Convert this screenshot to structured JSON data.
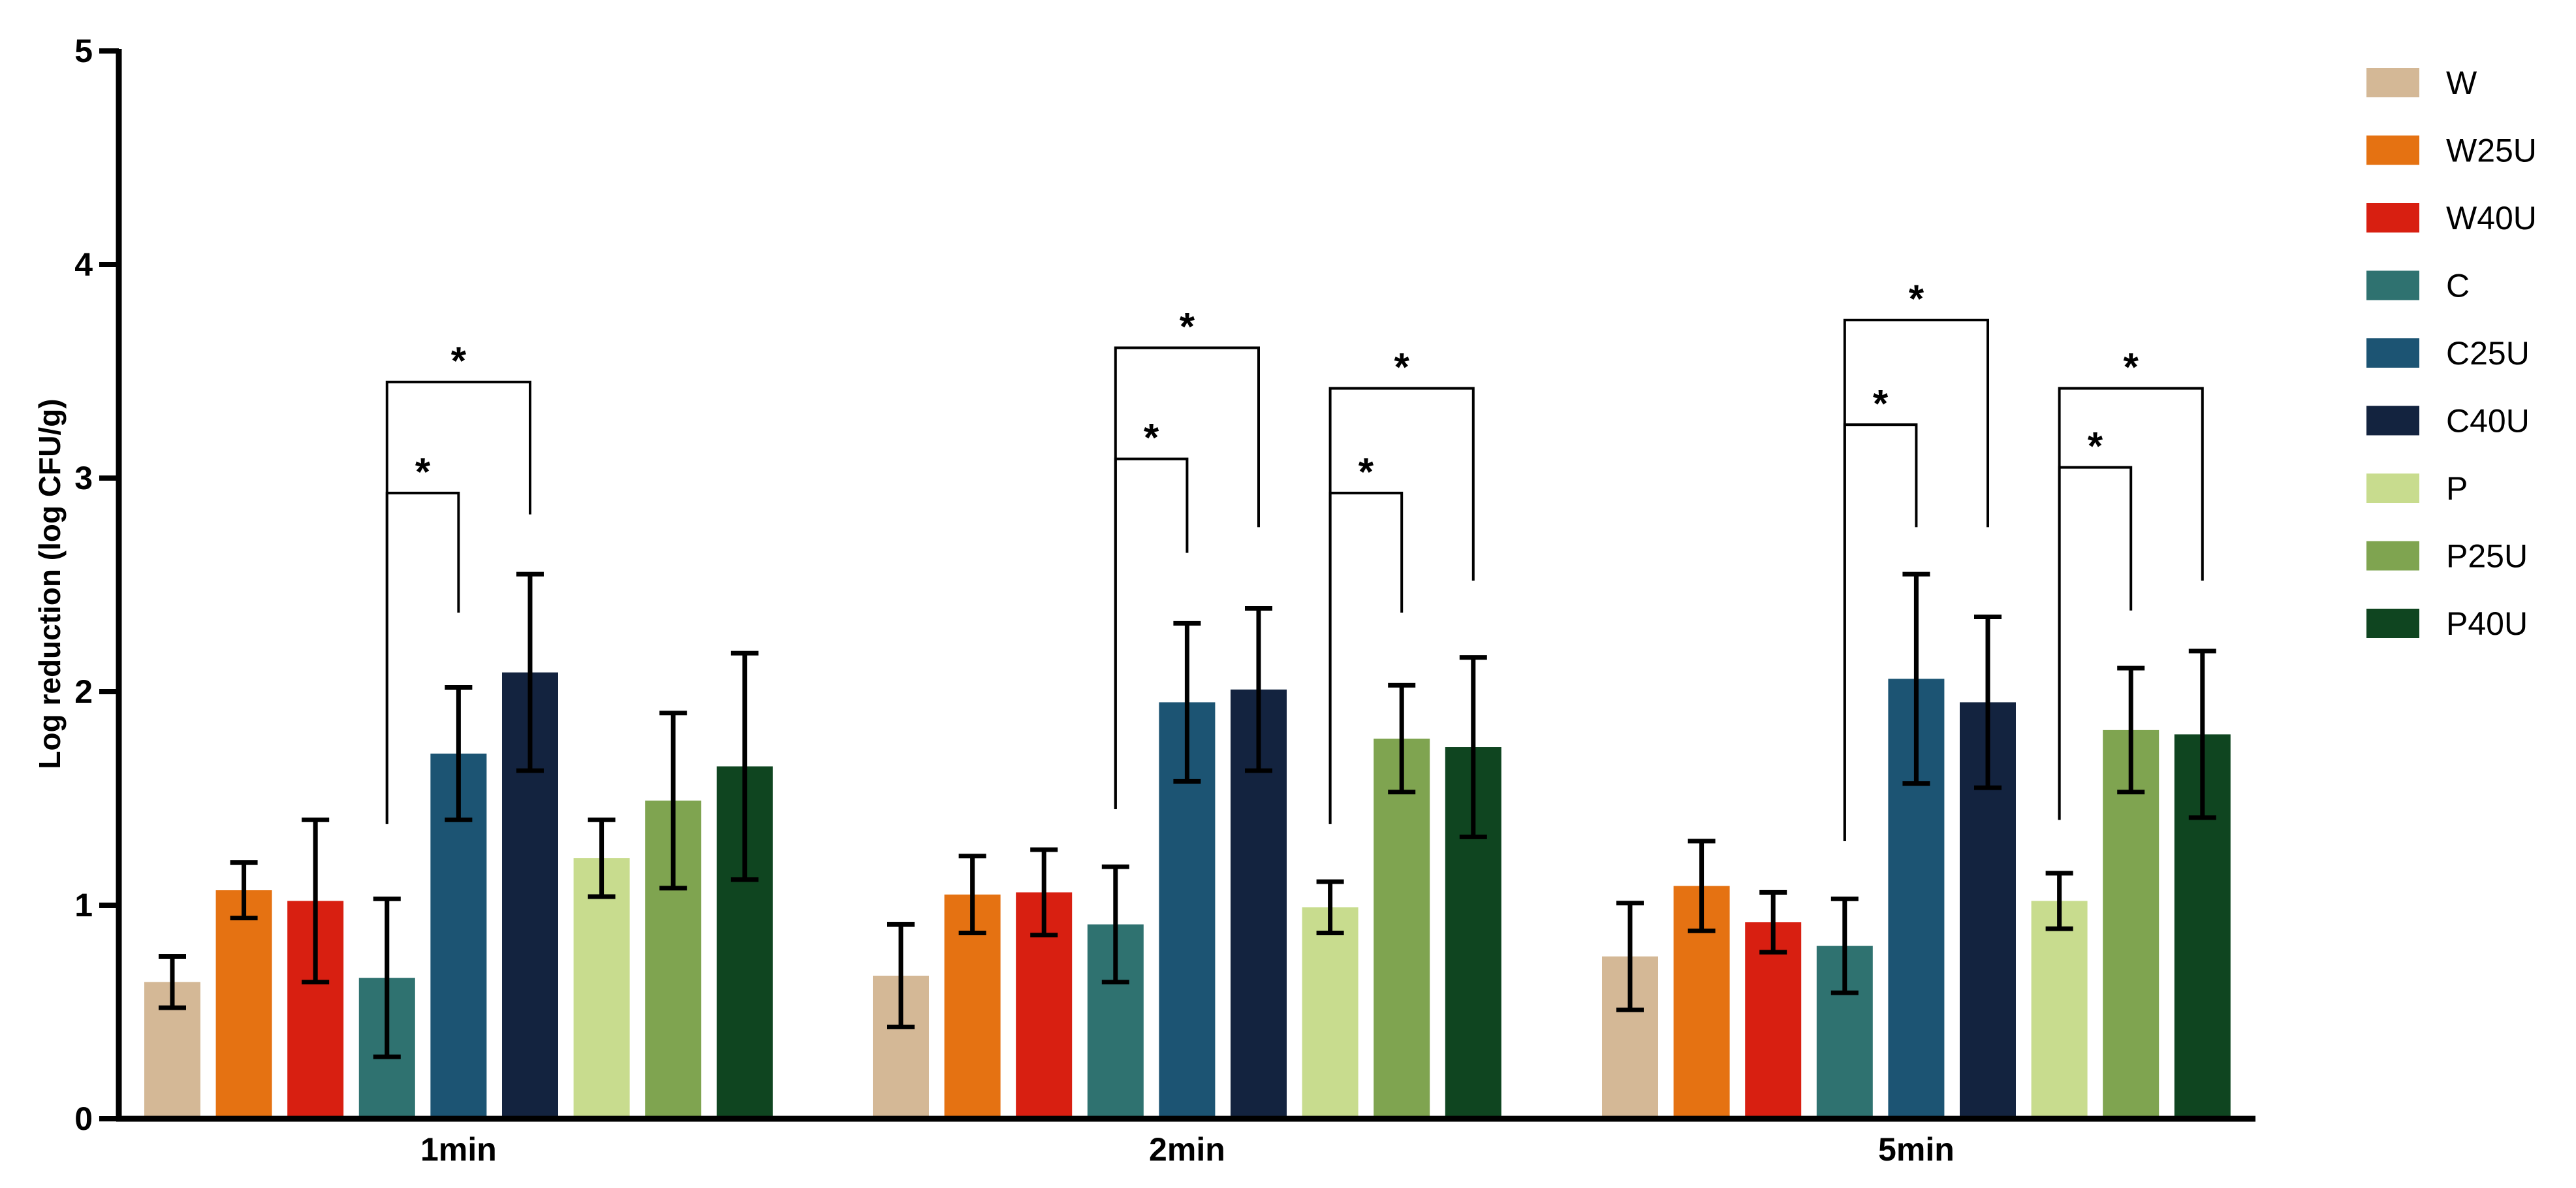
{
  "chart_data": {
    "type": "bar",
    "title": "",
    "xlabel": "",
    "ylabel": "Log reduction (log CFU/g)",
    "ylim": [
      0,
      5
    ],
    "yticks": [
      "0",
      "1",
      "2",
      "3",
      "4",
      "5"
    ],
    "grid": false,
    "legend_position": "right",
    "categories": [
      "1min",
      "2min",
      "5min"
    ],
    "series": [
      {
        "name": "W",
        "color": "#D4B896",
        "values": [
          0.64,
          0.67,
          0.76
        ],
        "errors": [
          0.12,
          0.24,
          0.25
        ]
      },
      {
        "name": "W25U",
        "color": "#E57212",
        "values": [
          1.07,
          1.05,
          1.09
        ],
        "errors": [
          0.13,
          0.18,
          0.21
        ]
      },
      {
        "name": "W40U",
        "color": "#D81F11",
        "values": [
          1.02,
          1.06,
          0.92
        ],
        "errors": [
          0.38,
          0.2,
          0.14
        ]
      },
      {
        "name": "C",
        "color": "#2F7270",
        "values": [
          0.66,
          0.91,
          0.81
        ],
        "errors": [
          0.37,
          0.27,
          0.22
        ]
      },
      {
        "name": "C25U",
        "color": "#1C5473",
        "values": [
          1.71,
          1.95,
          2.06
        ],
        "errors": [
          0.31,
          0.37,
          0.49
        ]
      },
      {
        "name": "C40U",
        "color": "#13233F",
        "values": [
          2.09,
          2.01,
          1.95
        ],
        "errors": [
          0.46,
          0.38,
          0.4
        ]
      },
      {
        "name": "P",
        "color": "#C8DC8E",
        "values": [
          1.22,
          0.99,
          1.02
        ],
        "errors": [
          0.18,
          0.12,
          0.13
        ]
      },
      {
        "name": "P25U",
        "color": "#7FA450",
        "values": [
          1.49,
          1.78,
          1.82
        ],
        "errors": [
          0.41,
          0.25,
          0.29
        ]
      },
      {
        "name": "P40U",
        "color": "#0F4520",
        "values": [
          1.65,
          1.74,
          1.8
        ],
        "errors": [
          0.53,
          0.42,
          0.39
        ]
      }
    ],
    "significance": [
      {
        "category": 0,
        "from": "C",
        "to": "C25U",
        "y_top": 2.93,
        "y_left": 1.38,
        "y_right": 2.37,
        "label": "*"
      },
      {
        "category": 0,
        "from": "C",
        "to": "C40U",
        "y_top": 3.45,
        "y_left": 1.38,
        "y_right": 2.83,
        "label": "*"
      },
      {
        "category": 1,
        "from": "C",
        "to": "C25U",
        "y_top": 3.09,
        "y_left": 1.45,
        "y_right": 2.65,
        "label": "*"
      },
      {
        "category": 1,
        "from": "C",
        "to": "C40U",
        "y_top": 3.61,
        "y_left": 1.45,
        "y_right": 2.77,
        "label": "*"
      },
      {
        "category": 1,
        "from": "P",
        "to": "P25U",
        "y_top": 2.93,
        "y_left": 1.38,
        "y_right": 2.37,
        "label": "*"
      },
      {
        "category": 1,
        "from": "P",
        "to": "P40U",
        "y_top": 3.42,
        "y_left": 1.38,
        "y_right": 2.52,
        "label": "*"
      },
      {
        "category": 2,
        "from": "C",
        "to": "C25U",
        "y_top": 3.25,
        "y_left": 1.3,
        "y_right": 2.77,
        "label": "*"
      },
      {
        "category": 2,
        "from": "C",
        "to": "C40U",
        "y_top": 3.74,
        "y_left": 1.3,
        "y_right": 2.77,
        "label": "*"
      },
      {
        "category": 2,
        "from": "P",
        "to": "P25U",
        "y_top": 3.05,
        "y_left": 1.4,
        "y_right": 2.38,
        "label": "*"
      },
      {
        "category": 2,
        "from": "P",
        "to": "P40U",
        "y_top": 3.42,
        "y_left": 1.4,
        "y_right": 2.52,
        "label": "*"
      }
    ]
  }
}
